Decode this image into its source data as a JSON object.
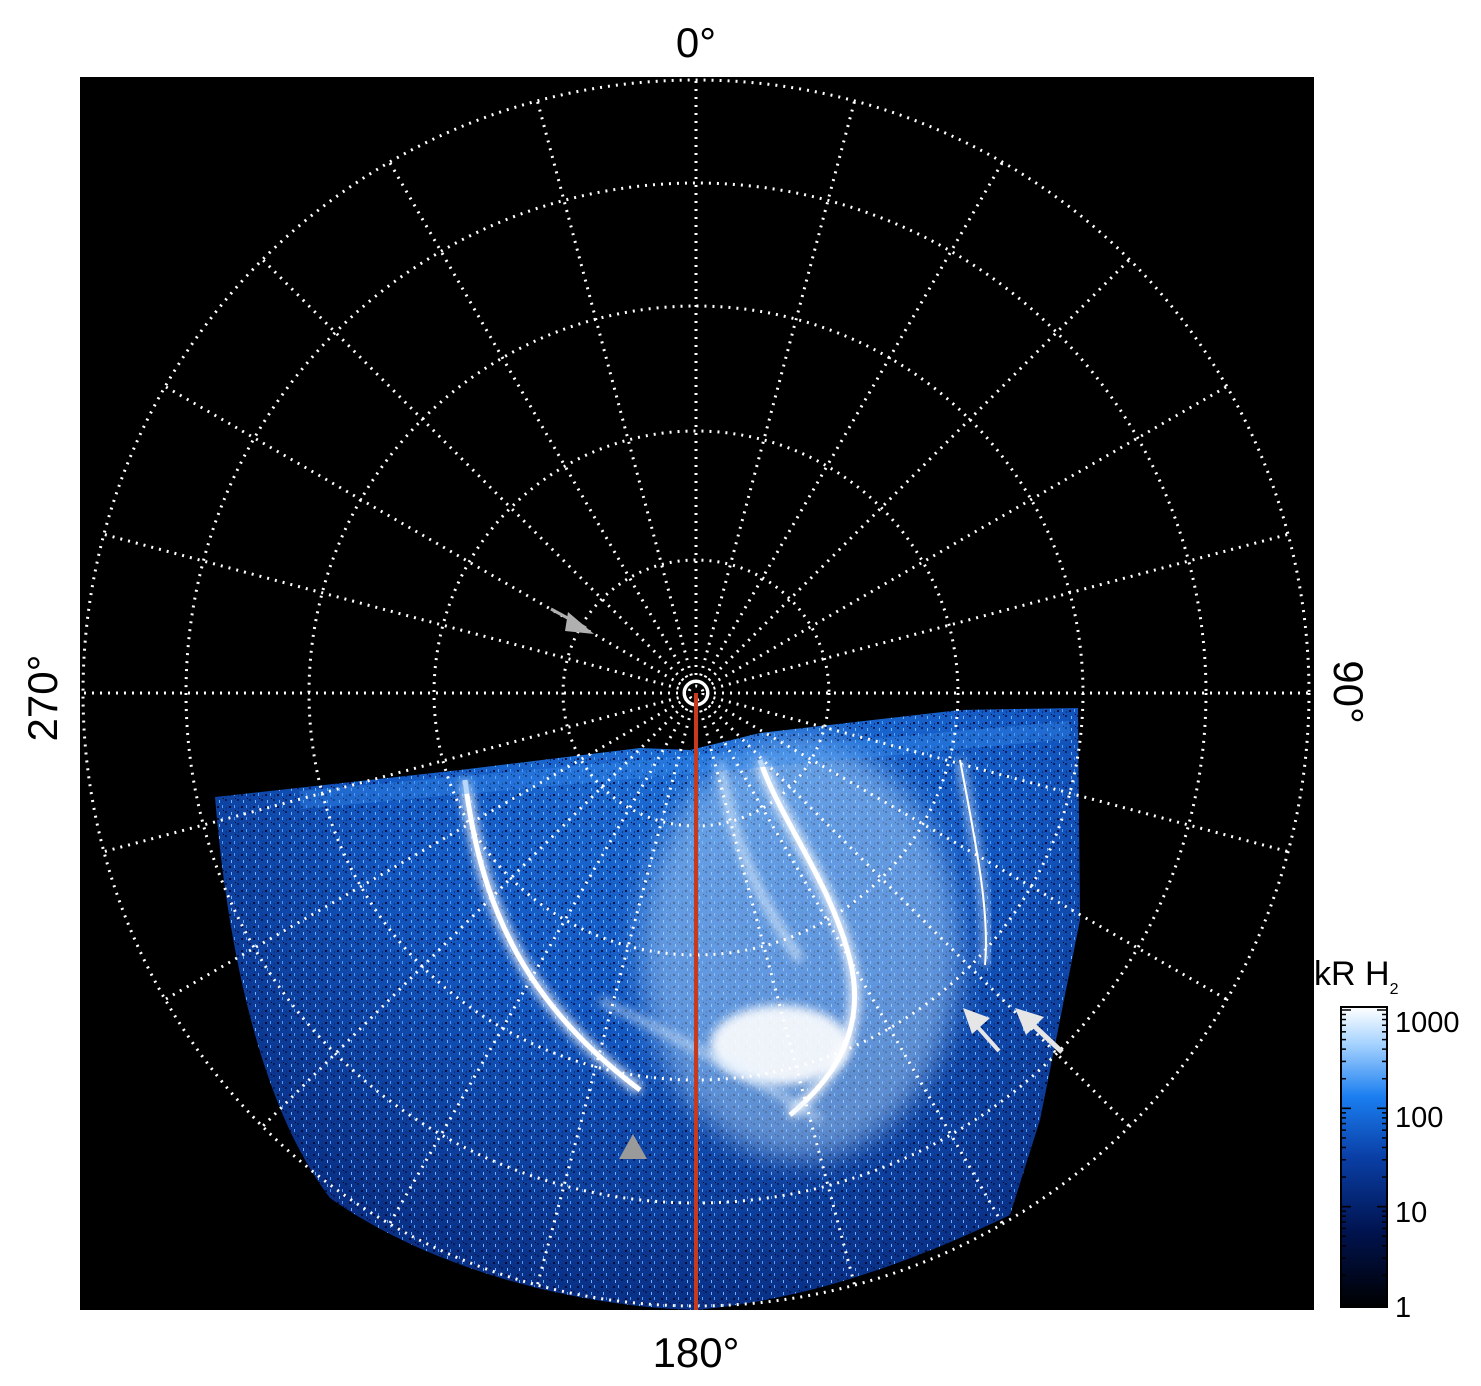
{
  "labels": {
    "top": "0°",
    "right": "90°",
    "bottom": "180°",
    "left": "270°"
  },
  "colorbar": {
    "title_main": "kR H",
    "title_sub": "2",
    "ticks": [
      "1000",
      "100",
      "10",
      "1"
    ],
    "colors": [
      "#000000",
      "#00134f",
      "#0a3fa6",
      "#1a7ef0",
      "#a8d4ff",
      "#ffffff"
    ]
  },
  "colors": {
    "background": "#000000",
    "grid": "#ffffff",
    "meridian": "#c83a1e",
    "arrow_grey": "#b0b0b0",
    "arrow_white": "#e6e6e6"
  }
}
